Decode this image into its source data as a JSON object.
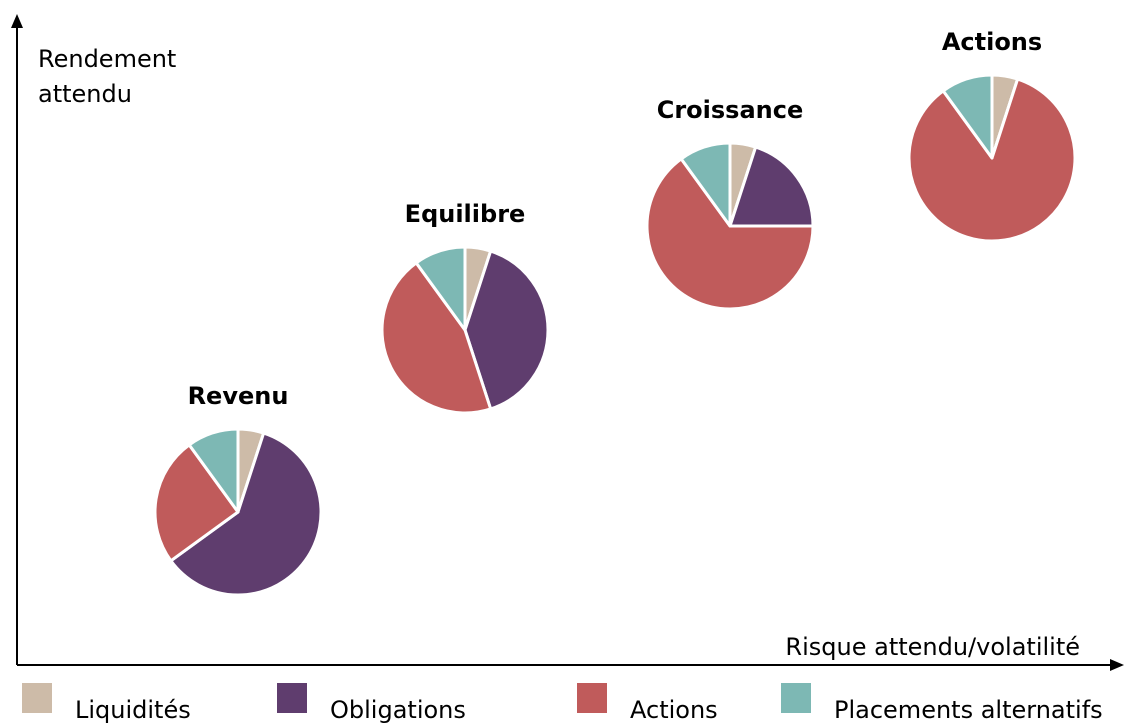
{
  "chart_data": {
    "type": "pie",
    "y_label": "Rendement attendu",
    "x_label": "Risque attendu/volatilité",
    "categories": [
      "Revenu",
      "Equilibre",
      "Croissance",
      "Actions"
    ],
    "series": [
      {
        "name": "Liquidités",
        "color": "#cdbba8",
        "values": [
          5,
          5,
          5,
          5
        ]
      },
      {
        "name": "Obligations",
        "color": "#5f3d6e",
        "values": [
          60,
          40,
          20,
          0
        ]
      },
      {
        "name": "Actions",
        "color": "#c05b5b",
        "values": [
          25,
          45,
          65,
          85
        ]
      },
      {
        "name": "Placements alternatifs",
        "color": "#7db8b4",
        "values": [
          10,
          10,
          10,
          10
        ]
      }
    ]
  }
}
